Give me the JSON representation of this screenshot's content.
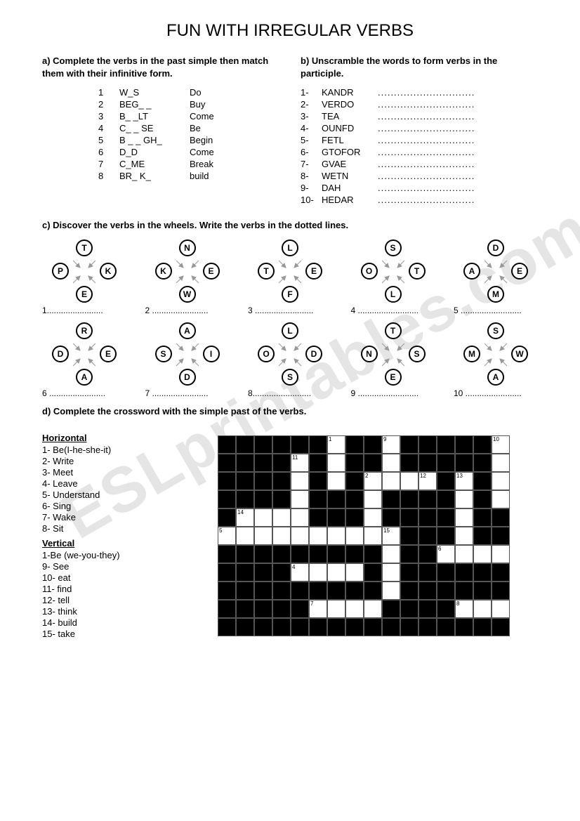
{
  "title": "FUN WITH IRREGULAR VERBS",
  "watermark": "ESLprintables.com",
  "section_a": {
    "instruction": "a) Complete the verbs in the past simple then match them with their infinitive form.",
    "rows": [
      {
        "n": "1",
        "gap": "W_S",
        "inf": "Do"
      },
      {
        "n": "2",
        "gap": "BEG_ _",
        "inf": "Buy"
      },
      {
        "n": "3",
        "gap": "B_ _LT",
        "inf": "Come"
      },
      {
        "n": "4",
        "gap": "C_ _ SE",
        "inf": "Be"
      },
      {
        "n": "5",
        "gap": "B _ _ GH_",
        "inf": "Begin"
      },
      {
        "n": "6",
        "gap": "D_D",
        "inf": "Come"
      },
      {
        "n": "7",
        "gap": "C_ME",
        "inf": "Break"
      },
      {
        "n": "8",
        "gap": "BR_ K_",
        "inf": "build"
      }
    ]
  },
  "section_b": {
    "instruction": "b) Unscramble the words to form verbs in the participle.",
    "dots": "..............................",
    "rows": [
      {
        "n": "1-",
        "s": "KANDR"
      },
      {
        "n": "2-",
        "s": "VERDO"
      },
      {
        "n": "3-",
        "s": "TEA"
      },
      {
        "n": "4-",
        "s": "OUNFD"
      },
      {
        "n": "5-",
        "s": "FETL"
      },
      {
        "n": "6-",
        "s": "GTOFOR"
      },
      {
        "n": "7-",
        "s": "GVAE"
      },
      {
        "n": "8-",
        "s": "WETN"
      },
      {
        "n": "9-",
        "s": "DAH"
      },
      {
        "n": "10-",
        "s": "HEDAR"
      }
    ]
  },
  "section_c": {
    "instruction": "c) Discover the verbs in the wheels. Write the verbs in the dotted lines.",
    "wheels_row1": [
      {
        "top": "T",
        "right": "K",
        "bottom": "E",
        "left": "P"
      },
      {
        "top": "N",
        "right": "E",
        "bottom": "W",
        "left": "K"
      },
      {
        "top": "L",
        "right": "E",
        "bottom": "F",
        "left": "T"
      },
      {
        "top": "S",
        "right": "T",
        "bottom": "L",
        "left": "O"
      },
      {
        "top": "D",
        "right": "E",
        "bottom": "M",
        "left": "A"
      }
    ],
    "wheels_row2": [
      {
        "top": "R",
        "right": "E",
        "bottom": "A",
        "left": "D"
      },
      {
        "top": "A",
        "right": "I",
        "bottom": "D",
        "left": "S"
      },
      {
        "top": "L",
        "right": "D",
        "bottom": "S",
        "left": "O"
      },
      {
        "top": "T",
        "right": "S",
        "bottom": "E",
        "left": "N"
      },
      {
        "top": "S",
        "right": "W",
        "bottom": "A",
        "left": "M"
      }
    ],
    "labels_row1": [
      "1........................",
      "2 ........................",
      "3 .........................",
      "4 ..........................",
      "5 .........................."
    ],
    "labels_row2": [
      "6 ........................",
      "7 ........................",
      "8.........................",
      "9 ..........................",
      "10 ........................"
    ]
  },
  "section_d": {
    "instruction": "d) Complete the crossword with the simple past of the verbs.",
    "horizontal_title": "Horizontal",
    "horizontal": [
      "1-  Be(I-he-she-it)",
      "2-  Write",
      "3-  Meet",
      "4-  Leave",
      "5-  Understand",
      "6-  Sing",
      "7-  Wake",
      "8-  Sit"
    ],
    "vertical_title": "Vertical",
    "vertical": [
      "1-Be (we-you-they)",
      "9-    See",
      "10-  eat",
      "11-  find",
      "12-  tell",
      "13-  think",
      "14-  build",
      "15-  take"
    ],
    "grid": {
      "cols": 16,
      "rows": 11,
      "cells": [
        "BBBBBBWBBWBBBBBW",
        "BBBBWBWBBWBBBBBW",
        "BBBBWBWBWWWWBWBW",
        "BBBBWBBBWBBBBWBW",
        "BWWWWBBBWBBBBWBB",
        "WWWWWWWWWWBBBWBB",
        "BBBBBBBBBWBBWWWW",
        "BBBBWWWWBWBBBBBB",
        "BBBBBBBBBWBBBBBB",
        "BBBBBWWWWBBBBWWW",
        "BBBBBBBBBBBBBBBB"
      ],
      "numbers": {
        "0-6": "1",
        "0-9": "9",
        "0-15": "10",
        "1-4": "11",
        "2-8": "2",
        "2-11": "12",
        "2-13": "13",
        "4-1": "14",
        "5-0": "5",
        "5-9": "15",
        "6-12": "6",
        "7-4": "4",
        "9-5": "7",
        "9-13": "8"
      }
    }
  },
  "colors": {
    "bg": "#ffffff",
    "text": "#000000",
    "black": "#000000",
    "wm": "#e5e5e5"
  }
}
